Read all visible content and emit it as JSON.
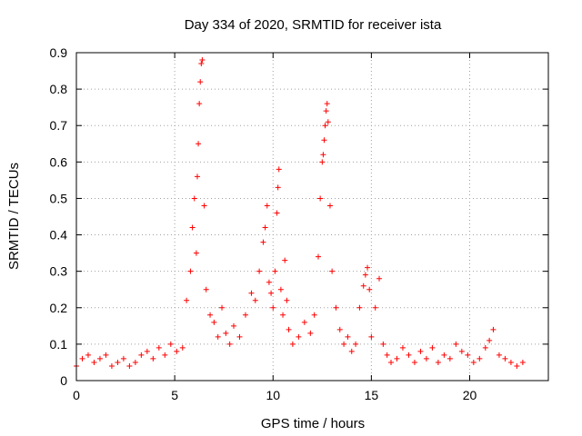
{
  "chart_data": {
    "type": "scatter",
    "title": "Day 334 of 2020, SRMTID for receiver ista",
    "xlabel": "GPS time / hours",
    "ylabel": "SRMTID / TECUs",
    "xlim": [
      0,
      24
    ],
    "ylim": [
      0,
      0.9
    ],
    "xticks": [
      0,
      5,
      10,
      15,
      20
    ],
    "xtick_labels": [
      "0",
      "5",
      "10",
      "15",
      "20"
    ],
    "yticks": [
      0,
      0.1,
      0.2,
      0.3,
      0.4,
      0.5,
      0.6,
      0.7,
      0.8,
      0.9
    ],
    "ytick_labels": [
      "0",
      "0.1",
      "0.2",
      "0.3",
      "0.4",
      "0.5",
      "0.6",
      "0.7",
      "0.8",
      "0.9"
    ],
    "grid": true,
    "marker": "plus",
    "color": "#ff0000",
    "series": [
      {
        "name": "SRMTID",
        "x": [
          0.0,
          0.3,
          0.6,
          0.9,
          1.2,
          1.5,
          1.8,
          2.1,
          2.4,
          2.7,
          3.0,
          3.3,
          3.6,
          3.9,
          4.2,
          4.5,
          4.8,
          5.1,
          5.4,
          5.6,
          5.8,
          5.9,
          6.0,
          6.1,
          6.15,
          6.2,
          6.25,
          6.3,
          6.35,
          6.4,
          6.5,
          6.6,
          6.8,
          7.0,
          7.2,
          7.4,
          7.6,
          7.8,
          8.0,
          8.3,
          8.6,
          8.9,
          9.1,
          9.3,
          9.5,
          9.6,
          9.7,
          9.8,
          9.9,
          10.0,
          10.1,
          10.2,
          10.25,
          10.3,
          10.4,
          10.5,
          10.6,
          10.7,
          10.8,
          11.0,
          11.3,
          11.6,
          11.9,
          12.1,
          12.3,
          12.4,
          12.5,
          12.55,
          12.6,
          12.65,
          12.7,
          12.75,
          12.8,
          12.9,
          13.0,
          13.2,
          13.4,
          13.6,
          13.8,
          14.0,
          14.2,
          14.4,
          14.6,
          14.7,
          14.8,
          14.9,
          15.0,
          15.2,
          15.4,
          15.6,
          15.8,
          16.0,
          16.3,
          16.6,
          16.9,
          17.2,
          17.5,
          17.8,
          18.1,
          18.4,
          18.7,
          19.0,
          19.3,
          19.6,
          19.9,
          20.2,
          20.5,
          20.8,
          21.0,
          21.2,
          21.5,
          21.8,
          22.1,
          22.4,
          22.7
        ],
        "y": [
          0.04,
          0.06,
          0.07,
          0.05,
          0.06,
          0.07,
          0.04,
          0.05,
          0.06,
          0.04,
          0.05,
          0.07,
          0.08,
          0.06,
          0.09,
          0.07,
          0.1,
          0.08,
          0.09,
          0.22,
          0.3,
          0.42,
          0.5,
          0.35,
          0.56,
          0.65,
          0.76,
          0.82,
          0.87,
          0.88,
          0.48,
          0.25,
          0.18,
          0.16,
          0.12,
          0.2,
          0.13,
          0.1,
          0.15,
          0.12,
          0.18,
          0.24,
          0.22,
          0.3,
          0.38,
          0.42,
          0.48,
          0.27,
          0.24,
          0.2,
          0.3,
          0.46,
          0.53,
          0.58,
          0.25,
          0.18,
          0.33,
          0.22,
          0.14,
          0.1,
          0.12,
          0.16,
          0.13,
          0.18,
          0.34,
          0.5,
          0.6,
          0.62,
          0.66,
          0.7,
          0.74,
          0.76,
          0.71,
          0.48,
          0.3,
          0.2,
          0.14,
          0.1,
          0.12,
          0.08,
          0.1,
          0.2,
          0.26,
          0.29,
          0.31,
          0.25,
          0.12,
          0.2,
          0.28,
          0.1,
          0.07,
          0.05,
          0.06,
          0.09,
          0.07,
          0.05,
          0.08,
          0.06,
          0.09,
          0.05,
          0.07,
          0.06,
          0.1,
          0.08,
          0.07,
          0.05,
          0.06,
          0.09,
          0.11,
          0.14,
          0.07,
          0.06,
          0.05,
          0.04,
          0.05
        ]
      }
    ]
  }
}
